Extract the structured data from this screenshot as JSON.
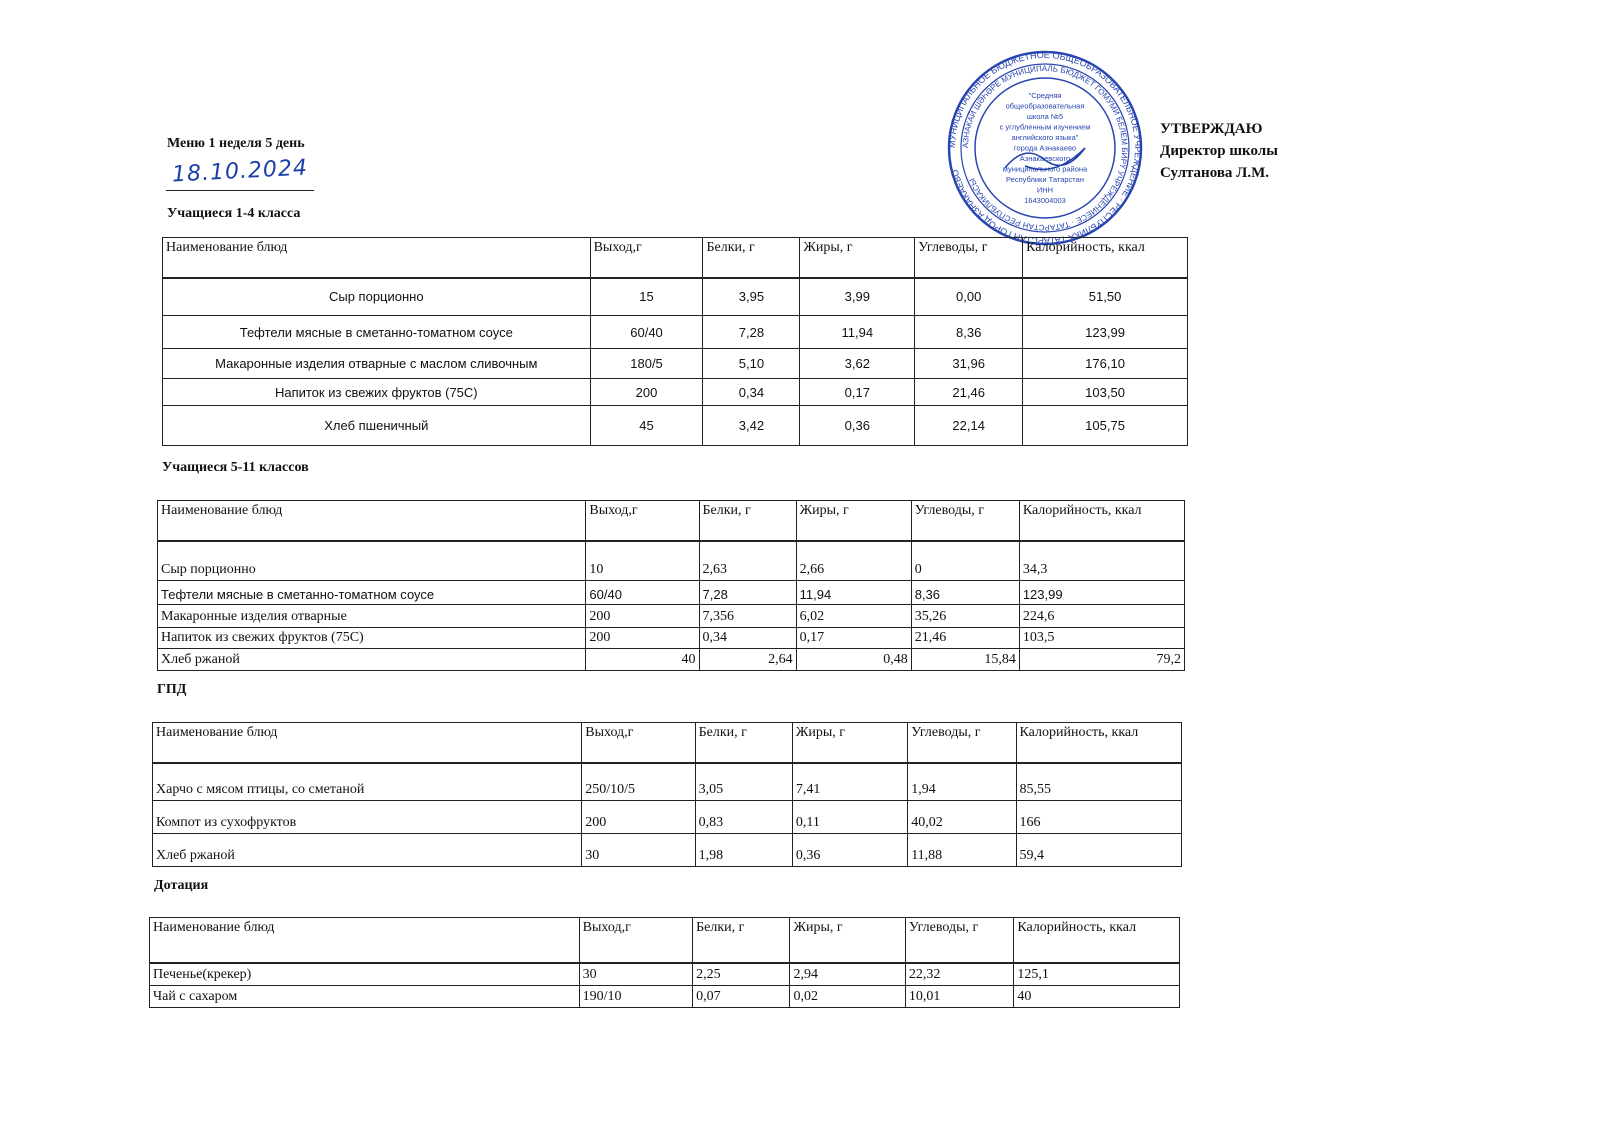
{
  "header": {
    "title": "Меню 1 неделя 5 день",
    "date_handwritten": "18.10.2024",
    "approval": "УТВЕРЖДАЮ",
    "position": "Директор школы",
    "name": "Султанова Л.М."
  },
  "stamp": {
    "outer_text": "МУНИЦИПАЛЬНОЕ БЮДЖЕТНОЕ ОБЩЕОБРАЗОВАТЕЛЬНОЕ УЧРЕЖДЕНИЕ · РЕСПУБЛИКА ТАТАРСТАН ГОРОД АЗНАКАЕВО",
    "inner_text": "АЗНАКАЙ ШӘҺӘРЕ МУНИЦИПАЛЬ БЮДЖЕТ ГОМУМИ БЕЛЕМ БИРҮ УЧРЕЖДЕНИЕСЕ · ТАТАРСТАН РЕСПУБЛИКАСЫ",
    "center_lines": [
      "\"Средняя",
      "общеобразовательная",
      "школа №5",
      "с углубленным изучением",
      "английского языка\"",
      "города Азнакаево",
      "Азнакаевского",
      "муниципального района",
      "Республики Татарстан",
      "ИНН",
      "1643004003"
    ],
    "color": "#2846b0"
  },
  "columns": [
    "Наименование блюд",
    "Выход,г",
    "Белки, г",
    "Жиры, г",
    "Углеводы, г",
    "Калорийность, ккал"
  ],
  "sections": [
    {
      "title": "Учащиеся 1-4 класса",
      "rows": [
        [
          "Сыр порционно",
          "15",
          "3,95",
          "3,99",
          "0,00",
          "51,50"
        ],
        [
          "Тефтели мясные в сметанно-томатном соусе",
          "60/40",
          "7,28",
          "11,94",
          "8,36",
          "123,99"
        ],
        [
          "Макаронные изделия отварные с маслом сливочным",
          "180/5",
          "5,10",
          "3,62",
          "31,96",
          "176,10"
        ],
        [
          "Напиток из свежих фруктов (75С)",
          "200",
          "0,34",
          "0,17",
          "21,46",
          "103,50"
        ],
        [
          "Хлеб пшеничный",
          "45",
          "3,42",
          "0,36",
          "22,14",
          "105,75"
        ]
      ]
    },
    {
      "title": "Учащиеся 5-11 классов",
      "rows": [
        [
          "Сыр порционно",
          "10",
          "2,63",
          "2,66",
          "0",
          "34,3"
        ],
        [
          "Тефтели мясные в сметанно-томатном соусе",
          "60/40",
          "7,28",
          "11,94",
          "8,36",
          "123,99"
        ],
        [
          "Макаронные изделия отварные",
          "200",
          "7,356",
          "6,02",
          "35,26",
          "224,6"
        ],
        [
          "Напиток из свежих фруктов (75С)",
          "200",
          "0,34",
          "0,17",
          "21,46",
          "103,5"
        ],
        [
          "Хлеб ржаной",
          "40",
          "2,64",
          "0,48",
          "15,84",
          "79,2"
        ]
      ]
    },
    {
      "title": "ГПД",
      "rows": [
        [
          "Харчо с мясом птицы, со сметаной",
          "250/10/5",
          "3,05",
          "7,41",
          "1,94",
          "85,55"
        ],
        [
          "Компот из сухофруктов",
          "200",
          "0,83",
          "0,11",
          "40,02",
          "166"
        ],
        [
          "Хлеб ржаной",
          "30",
          "1,98",
          "0,36",
          "11,88",
          "59,4"
        ]
      ]
    },
    {
      "title": "Дотация",
      "rows": [
        [
          "Печенье(крекер)",
          "30",
          "2,25",
          "2,94",
          "22,32",
          "125,1"
        ],
        [
          "Чай с сахаром",
          "190/10",
          "0,07",
          "0,02",
          "10,01",
          "40"
        ]
      ]
    }
  ]
}
